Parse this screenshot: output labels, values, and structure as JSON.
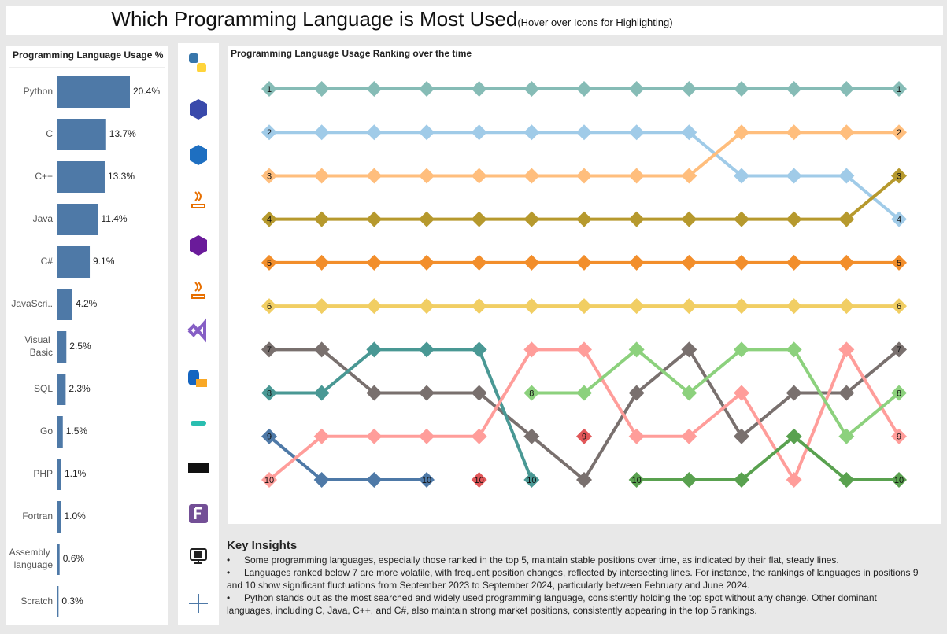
{
  "page_title": "Which Programming Language is Most Used",
  "page_hint": "(Hover over Icons for Highlighting)",
  "insights": {
    "heading": "Key Insights",
    "bullets": [
      "Some programming languages, especially those ranked in the top 5, maintain stable positions over time, as indicated by their flat, steady lines.",
      "Languages ranked below 7 are more volatile, with frequent position changes, reflected by intersecting lines. For instance, the rankings of languages in positions 9 and 10 show significant fluctuations from September 2023 to September 2024, particularly between February and June 2024.",
      "Python stands out as the most searched and widely used programming language, consistently holding the top spot without any change. Other dominant languages, including C, Java, C++, and C#, also maintain strong market positions, consistently appearing in the top 5 rankings."
    ]
  },
  "chart_data": [
    {
      "type": "bar",
      "orientation": "horizontal",
      "title": "Programming Language Usage %",
      "categories": [
        "Python",
        "C",
        "C++",
        "Java",
        "C#",
        "JavaScri..",
        "Visual Basic",
        "SQL",
        "Go",
        "PHP",
        "Fortran",
        "Assembly language",
        "Scratch"
      ],
      "values": [
        20.4,
        13.7,
        13.3,
        11.4,
        9.1,
        4.2,
        2.5,
        2.3,
        1.5,
        1.1,
        1.0,
        0.6,
        0.3
      ],
      "value_labels": [
        "20.4%",
        "13.7%",
        "13.3%",
        "11.4%",
        "9.1%",
        "4.2%",
        "2.5%",
        "2.3%",
        "1.5%",
        "1.1%",
        "1.0%",
        "0.6%",
        "0.3%"
      ],
      "color": "#4e79a7"
    },
    {
      "type": "line",
      "title": "Programming Language Usage Ranking over the time",
      "categories": [
        null,
        null,
        null,
        null,
        null,
        null,
        null,
        null,
        null,
        null,
        null,
        null,
        null
      ],
      "ylim": [
        10,
        1
      ],
      "series": [
        {
          "color": "#86bcb6",
          "values": [
            1,
            1,
            1,
            1,
            1,
            1,
            1,
            1,
            1,
            1,
            1,
            1,
            1
          ]
        },
        {
          "color": "#a0cbe8",
          "values": [
            2,
            2,
            2,
            2,
            2,
            2,
            2,
            2,
            2,
            3,
            3,
            3,
            4
          ]
        },
        {
          "color": "#ffbe7d",
          "values": [
            3,
            3,
            3,
            3,
            3,
            3,
            3,
            3,
            3,
            2,
            2,
            2,
            2
          ]
        },
        {
          "color": "#b6992d",
          "values": [
            4,
            4,
            4,
            4,
            4,
            4,
            4,
            4,
            4,
            4,
            4,
            4,
            3
          ]
        },
        {
          "color": "#f28e2b",
          "values": [
            5,
            5,
            5,
            5,
            5,
            5,
            5,
            5,
            5,
            5,
            5,
            5,
            5
          ]
        },
        {
          "color": "#f1ce63",
          "values": [
            6,
            6,
            6,
            6,
            6,
            6,
            6,
            6,
            6,
            6,
            6,
            6,
            6
          ]
        },
        {
          "color": "#79706e",
          "values": [
            7,
            7,
            8,
            8,
            8,
            9,
            10,
            8,
            7,
            9,
            8,
            8,
            7
          ]
        },
        {
          "color": "#499894",
          "values": [
            8,
            8,
            7,
            7,
            7,
            10,
            null,
            null,
            null,
            null,
            null,
            null,
            null
          ]
        },
        {
          "color": "#4e79a7",
          "values": [
            9,
            10,
            10,
            10,
            null,
            null,
            null,
            null,
            null,
            null,
            null,
            null,
            null
          ]
        },
        {
          "color": "#ff9d9a",
          "values": [
            10,
            9,
            9,
            9,
            9,
            7,
            7,
            9,
            9,
            8,
            10,
            7,
            9
          ]
        },
        {
          "color": "#e15759",
          "values": [
            null,
            null,
            null,
            null,
            10,
            null,
            9,
            null,
            null,
            null,
            null,
            null,
            null
          ]
        },
        {
          "color": "#8cd17d",
          "values": [
            null,
            null,
            null,
            null,
            null,
            8,
            8,
            7,
            8,
            7,
            7,
            9,
            8
          ]
        },
        {
          "color": "#59a14f",
          "values": [
            null,
            null,
            null,
            null,
            null,
            null,
            null,
            10,
            10,
            10,
            9,
            10,
            10
          ]
        }
      ]
    }
  ]
}
